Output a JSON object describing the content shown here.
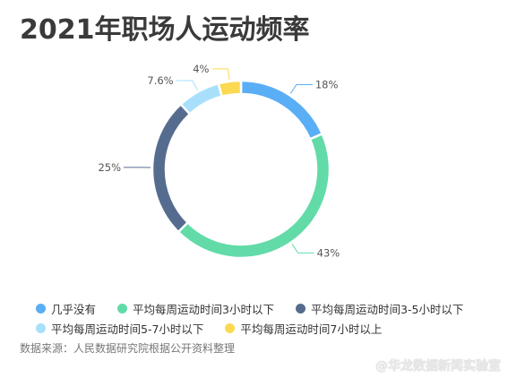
{
  "title": "2021年职场人运动频率",
  "source": "数据来源：人民数据研究院根据公开资料整理",
  "watermark": "@华龙数据新闻实验室",
  "chart_data": {
    "type": "pie",
    "donut": true,
    "slices": [
      {
        "label": "几乎没有",
        "value": 18,
        "display": "18%",
        "color": "#5aaef5"
      },
      {
        "label": "平均每周运动时间3小时以下",
        "value": 43,
        "display": "43%",
        "color": "#62dba8"
      },
      {
        "label": "平均每周运动时间3-5小时以下",
        "value": 25,
        "display": "25%",
        "color": "#566c8f"
      },
      {
        "label": "平均每周运动时间5-7小时以下",
        "value": 7.6,
        "display": "7.6%",
        "color": "#a8e0fb"
      },
      {
        "label": "平均每周运动时间7小时以上",
        "value": 4,
        "display": "4%",
        "color": "#fbd950"
      }
    ]
  }
}
